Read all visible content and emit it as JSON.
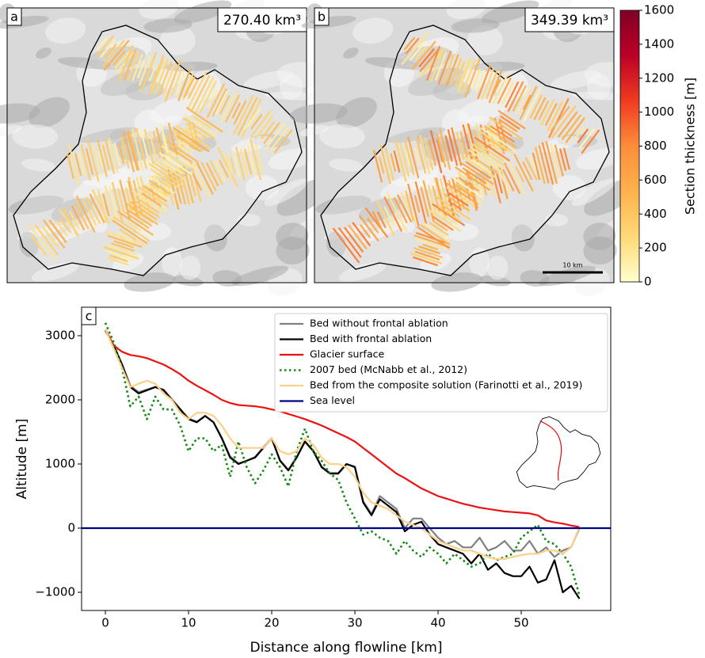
{
  "chart_data": [
    {
      "type": "map",
      "panel": "a",
      "annotation": "270.40 km³",
      "stripe_bias": 0.3
    },
    {
      "type": "map",
      "panel": "b",
      "annotation": "349.39 km³",
      "stripe_bias": 0.5,
      "scale_label": "10 km"
    },
    {
      "type": "colorbar",
      "ylabel": "Section thickness [m]",
      "ylim": [
        0,
        1600
      ],
      "yticks": [
        0,
        200,
        400,
        600,
        800,
        1000,
        1200,
        1400,
        1600
      ],
      "colormap": [
        "#ffffcc",
        "#fed976",
        "#feb24c",
        "#fd8d3c",
        "#f03b20",
        "#bd0026",
        "#800026"
      ]
    },
    {
      "type": "line",
      "panel": "c",
      "xlabel": "Distance along flowline [km]",
      "ylabel": "Altitude [m]",
      "xlim": [
        -2.86,
        60.76
      ],
      "ylim": [
        -1284,
        3444
      ],
      "xticks": [
        0,
        10,
        20,
        30,
        40,
        50
      ],
      "yticks": [
        {
          "value": -1000,
          "label": "−1000"
        },
        0,
        1000,
        2000,
        3000
      ],
      "x": [
        0,
        1,
        2,
        3,
        4,
        5,
        6,
        7,
        8,
        9,
        10,
        11,
        12,
        13,
        14,
        15,
        16,
        17,
        18,
        19,
        20,
        21,
        22,
        23,
        24,
        25,
        26,
        27,
        28,
        29,
        30,
        31,
        32,
        33,
        34,
        35,
        36,
        37,
        38,
        39,
        40,
        41,
        42,
        43,
        44,
        45,
        46,
        47,
        48,
        49,
        50,
        51,
        52,
        53,
        54,
        55,
        56,
        57
      ],
      "series": [
        {
          "name": "Bed without frontal ablation",
          "color": "#808080",
          "linestyle": "solid",
          "values": [
            3080,
            2850,
            2560,
            2220,
            2120,
            2160,
            2200,
            2160,
            2010,
            1860,
            1710,
            1660,
            1750,
            1650,
            1410,
            1120,
            1010,
            1050,
            1110,
            1260,
            1400,
            1060,
            910,
            1110,
            1350,
            1210,
            960,
            860,
            860,
            1000,
            960,
            420,
            220,
            500,
            400,
            300,
            0,
            150,
            150,
            0,
            -150,
            -250,
            -200,
            -300,
            -300,
            -150,
            -350,
            -300,
            -200,
            -350,
            -350,
            -200,
            -400,
            -300,
            -450,
            -350,
            -300,
            0
          ]
        },
        {
          "name": "Bed with frontal ablation",
          "color": "#000000",
          "linestyle": "solid",
          "values": [
            3080,
            2850,
            2550,
            2200,
            2100,
            2150,
            2200,
            2150,
            2000,
            1850,
            1700,
            1650,
            1750,
            1650,
            1400,
            1100,
            1000,
            1050,
            1100,
            1250,
            1400,
            1050,
            900,
            1100,
            1350,
            1200,
            950,
            850,
            850,
            1000,
            950,
            400,
            200,
            450,
            350,
            250,
            -50,
            50,
            100,
            -100,
            -250,
            -300,
            -350,
            -400,
            -550,
            -400,
            -650,
            -550,
            -700,
            -750,
            -750,
            -600,
            -850,
            -800,
            -500,
            -1000,
            -900,
            -1100
          ]
        },
        {
          "name": "Glacier surface",
          "color": "#ee1111",
          "linestyle": "solid",
          "values": [
            3100,
            2850,
            2750,
            2700,
            2680,
            2650,
            2600,
            2550,
            2480,
            2400,
            2300,
            2220,
            2150,
            2080,
            2000,
            1950,
            1920,
            1910,
            1900,
            1880,
            1850,
            1820,
            1780,
            1740,
            1700,
            1650,
            1600,
            1540,
            1480,
            1420,
            1350,
            1250,
            1150,
            1050,
            950,
            850,
            780,
            700,
            620,
            560,
            500,
            460,
            420,
            380,
            350,
            320,
            300,
            280,
            260,
            250,
            240,
            230,
            200,
            120,
            90,
            70,
            40,
            20
          ]
        },
        {
          "name": "2007 bed (McNabb et al., 2012)",
          "color": "#138a13",
          "linestyle": "dotted",
          "values": [
            3200,
            2900,
            2500,
            1900,
            2050,
            1700,
            2050,
            1850,
            1850,
            1600,
            1200,
            1400,
            1400,
            1200,
            1300,
            800,
            1350,
            950,
            700,
            900,
            1150,
            950,
            650,
            1200,
            1550,
            1200,
            1050,
            850,
            750,
            400,
            150,
            -100,
            -50,
            -150,
            -200,
            -400,
            -200,
            -350,
            -450,
            -300,
            -400,
            -550,
            -400,
            -500,
            -600,
            -550,
            -400,
            -500,
            -450,
            -400,
            -150,
            -50,
            50,
            -200,
            -250,
            -400,
            -600,
            -1050
          ]
        },
        {
          "name": "Bed from the composite solution (Farinotti et al., 2019)",
          "color": "#fdd08a",
          "linestyle": "solid",
          "values": [
            3100,
            2800,
            2500,
            2200,
            2250,
            2300,
            2250,
            2100,
            2000,
            1800,
            1700,
            1800,
            1800,
            1750,
            1600,
            1400,
            1250,
            1250,
            1250,
            1250,
            1400,
            1200,
            1150,
            1200,
            1400,
            1300,
            1100,
            1000,
            1000,
            950,
            800,
            550,
            400,
            350,
            300,
            200,
            100,
            50,
            0,
            -100,
            -200,
            -250,
            -300,
            -350,
            -350,
            -400,
            -450,
            -480,
            -480,
            -450,
            -420,
            -400,
            -400,
            -350,
            -350,
            -400,
            -300,
            20
          ]
        },
        {
          "name": "Sea level",
          "color": "#00008b",
          "linestyle": "solid",
          "x": [
            -2.86,
            60.76
          ],
          "values": [
            0,
            0
          ]
        }
      ]
    }
  ]
}
